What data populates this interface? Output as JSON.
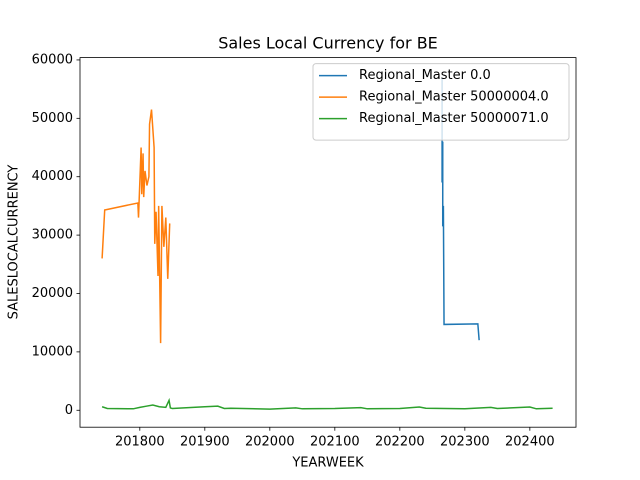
{
  "chart_data": {
    "type": "line",
    "title": "Sales Local Currency for BE",
    "xlabel": "YEARWEEK",
    "ylabel": "SALESLOCALCURRENCY",
    "legend": "upper right",
    "xlim": [
      201708,
      202471
    ],
    "ylim": [
      -2900,
      60400
    ],
    "xticks": [
      201800,
      201900,
      202000,
      202100,
      202200,
      202300,
      202400
    ],
    "yticks": [
      0,
      10000,
      20000,
      30000,
      40000,
      50000,
      60000
    ],
    "series": [
      {
        "name": "Regional_Master 0.0",
        "color": "#1f77b4",
        "x": [
          202265,
          202265,
          202266,
          202266,
          202267,
          202268,
          202320,
          202322
        ],
        "values": [
          57000,
          39000,
          46000,
          31500,
          35000,
          14700,
          14800,
          12000
        ]
      },
      {
        "name": "Regional_Master 50000004.0",
        "color": "#ff7f0e",
        "x": [
          201742,
          201746,
          201797,
          201798,
          201802,
          201803,
          201805,
          201806,
          201808,
          201811,
          201814,
          201815,
          201818,
          201822,
          201823,
          201825,
          201828,
          201829,
          201832,
          201834,
          201837,
          201840,
          201843,
          201846
        ],
        "values": [
          26000,
          34300,
          35500,
          33000,
          45000,
          37000,
          44000,
          36500,
          41000,
          38500,
          40000,
          49000,
          51500,
          45000,
          28500,
          34000,
          23000,
          35000,
          11500,
          35000,
          28000,
          33000,
          22500,
          32000
        ]
      },
      {
        "name": "Regional_Master 50000071.0",
        "color": "#2ca02c",
        "x": [
          201742,
          201750,
          201790,
          201800,
          201810,
          201820,
          201830,
          201840,
          201845,
          201847,
          201850,
          201900,
          201920,
          201930,
          201940,
          202000,
          202040,
          202050,
          202100,
          202140,
          202150,
          202200,
          202230,
          202240,
          202300,
          202340,
          202350,
          202400,
          202410,
          202435
        ],
        "values": [
          600,
          300,
          250,
          500,
          700,
          900,
          600,
          500,
          1700,
          400,
          300,
          600,
          700,
          300,
          350,
          200,
          400,
          250,
          300,
          450,
          250,
          300,
          550,
          350,
          250,
          500,
          300,
          550,
          250,
          350
        ]
      }
    ]
  }
}
